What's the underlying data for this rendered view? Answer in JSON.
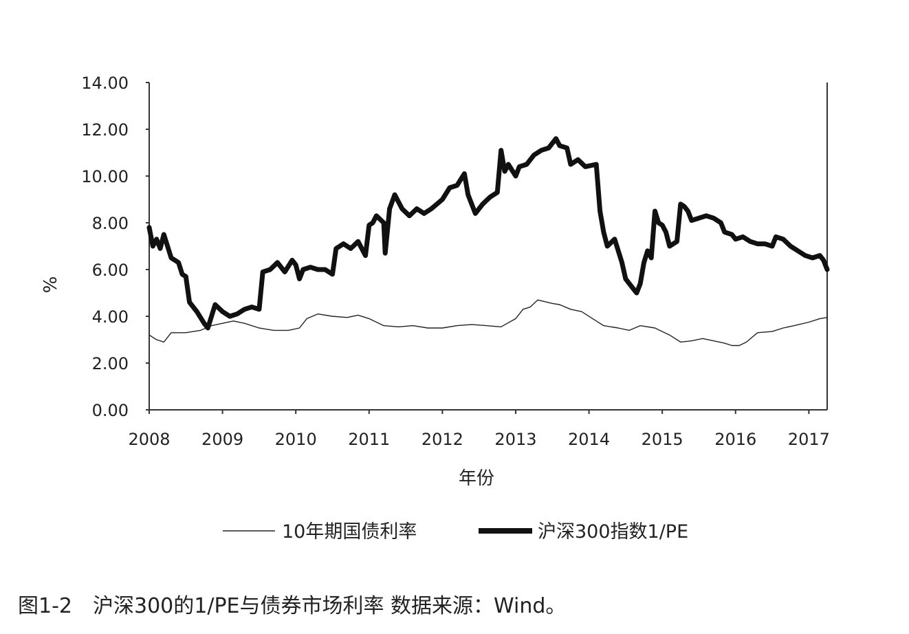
{
  "caption": "图1-2　沪深300的1/PE与债券市场利率 数据来源：Wind。",
  "chart_data": {
    "type": "line",
    "title": "",
    "xlabel": "年份",
    "ylabel": "%",
    "xlim": [
      2008.0,
      2017.25
    ],
    "ylim": [
      0,
      14
    ],
    "y_ticks": [
      "0.00",
      "2.00",
      "4.00",
      "6.00",
      "8.00",
      "10.00",
      "12.00",
      "14.00"
    ],
    "x_ticks": [
      "2008",
      "2009",
      "2010",
      "2011",
      "2012",
      "2013",
      "2014",
      "2015",
      "2016",
      "2017"
    ],
    "grid": false,
    "legend_position": "bottom",
    "series": [
      {
        "name": "10年期国债利率",
        "color": "#222222",
        "style": "thin",
        "points": [
          [
            2008.0,
            3.2
          ],
          [
            2008.1,
            3.0
          ],
          [
            2008.2,
            2.9
          ],
          [
            2008.3,
            3.3
          ],
          [
            2008.5,
            3.3
          ],
          [
            2008.7,
            3.4
          ],
          [
            2008.85,
            3.6
          ],
          [
            2009.0,
            3.7
          ],
          [
            2009.15,
            3.8
          ],
          [
            2009.3,
            3.7
          ],
          [
            2009.5,
            3.5
          ],
          [
            2009.7,
            3.4
          ],
          [
            2009.9,
            3.4
          ],
          [
            2010.05,
            3.5
          ],
          [
            2010.15,
            3.9
          ],
          [
            2010.3,
            4.1
          ],
          [
            2010.5,
            4.0
          ],
          [
            2010.7,
            3.95
          ],
          [
            2010.85,
            4.05
          ],
          [
            2011.0,
            3.9
          ],
          [
            2011.2,
            3.6
          ],
          [
            2011.4,
            3.55
          ],
          [
            2011.6,
            3.6
          ],
          [
            2011.8,
            3.5
          ],
          [
            2012.0,
            3.5
          ],
          [
            2012.2,
            3.6
          ],
          [
            2012.4,
            3.65
          ],
          [
            2012.6,
            3.6
          ],
          [
            2012.8,
            3.55
          ],
          [
            2013.0,
            3.9
          ],
          [
            2013.1,
            4.3
          ],
          [
            2013.2,
            4.4
          ],
          [
            2013.3,
            4.7
          ],
          [
            2013.5,
            4.55
          ],
          [
            2013.6,
            4.5
          ],
          [
            2013.75,
            4.3
          ],
          [
            2013.9,
            4.2
          ],
          [
            2014.1,
            3.8
          ],
          [
            2014.2,
            3.6
          ],
          [
            2014.4,
            3.5
          ],
          [
            2014.55,
            3.4
          ],
          [
            2014.7,
            3.6
          ],
          [
            2014.9,
            3.5
          ],
          [
            2015.1,
            3.2
          ],
          [
            2015.25,
            2.9
          ],
          [
            2015.4,
            2.95
          ],
          [
            2015.55,
            3.05
          ],
          [
            2015.7,
            2.95
          ],
          [
            2015.85,
            2.85
          ],
          [
            2015.95,
            2.75
          ],
          [
            2016.05,
            2.75
          ],
          [
            2016.15,
            2.9
          ],
          [
            2016.3,
            3.3
          ],
          [
            2016.5,
            3.35
          ],
          [
            2016.65,
            3.5
          ],
          [
            2016.8,
            3.6
          ],
          [
            2017.0,
            3.75
          ],
          [
            2017.15,
            3.9
          ],
          [
            2017.25,
            3.95
          ]
        ]
      },
      {
        "name": "沪深300指数1/PE",
        "color": "#111111",
        "style": "thick",
        "points": [
          [
            2008.0,
            7.8
          ],
          [
            2008.05,
            7.0
          ],
          [
            2008.1,
            7.3
          ],
          [
            2008.15,
            6.9
          ],
          [
            2008.2,
            7.5
          ],
          [
            2008.3,
            6.5
          ],
          [
            2008.4,
            6.3
          ],
          [
            2008.45,
            5.8
          ],
          [
            2008.5,
            5.7
          ],
          [
            2008.55,
            4.6
          ],
          [
            2008.65,
            4.2
          ],
          [
            2008.75,
            3.7
          ],
          [
            2008.8,
            3.5
          ],
          [
            2008.85,
            4.0
          ],
          [
            2008.9,
            4.5
          ],
          [
            2009.0,
            4.2
          ],
          [
            2009.1,
            4.0
          ],
          [
            2009.2,
            4.1
          ],
          [
            2009.3,
            4.3
          ],
          [
            2009.4,
            4.4
          ],
          [
            2009.5,
            4.3
          ],
          [
            2009.55,
            5.9
          ],
          [
            2009.65,
            6.0
          ],
          [
            2009.75,
            6.3
          ],
          [
            2009.85,
            5.9
          ],
          [
            2009.95,
            6.4
          ],
          [
            2010.0,
            6.2
          ],
          [
            2010.05,
            5.6
          ],
          [
            2010.1,
            6.0
          ],
          [
            2010.2,
            6.1
          ],
          [
            2010.3,
            6.0
          ],
          [
            2010.4,
            6.0
          ],
          [
            2010.5,
            5.8
          ],
          [
            2010.55,
            6.9
          ],
          [
            2010.65,
            7.1
          ],
          [
            2010.75,
            6.9
          ],
          [
            2010.85,
            7.2
          ],
          [
            2010.95,
            6.6
          ],
          [
            2011.0,
            7.9
          ],
          [
            2011.05,
            8.0
          ],
          [
            2011.1,
            8.3
          ],
          [
            2011.2,
            8.0
          ],
          [
            2011.22,
            6.7
          ],
          [
            2011.28,
            8.6
          ],
          [
            2011.35,
            9.2
          ],
          [
            2011.45,
            8.6
          ],
          [
            2011.55,
            8.3
          ],
          [
            2011.65,
            8.6
          ],
          [
            2011.75,
            8.4
          ],
          [
            2011.85,
            8.6
          ],
          [
            2012.0,
            9.0
          ],
          [
            2012.1,
            9.5
          ],
          [
            2012.2,
            9.6
          ],
          [
            2012.3,
            10.1
          ],
          [
            2012.35,
            9.2
          ],
          [
            2012.45,
            8.4
          ],
          [
            2012.55,
            8.8
          ],
          [
            2012.65,
            9.1
          ],
          [
            2012.75,
            9.3
          ],
          [
            2012.8,
            11.1
          ],
          [
            2012.85,
            10.2
          ],
          [
            2012.9,
            10.5
          ],
          [
            2013.0,
            10.0
          ],
          [
            2013.05,
            10.4
          ],
          [
            2013.15,
            10.5
          ],
          [
            2013.25,
            10.9
          ],
          [
            2013.35,
            11.1
          ],
          [
            2013.45,
            11.2
          ],
          [
            2013.55,
            11.6
          ],
          [
            2013.6,
            11.3
          ],
          [
            2013.7,
            11.2
          ],
          [
            2013.75,
            10.5
          ],
          [
            2013.85,
            10.7
          ],
          [
            2013.95,
            10.4
          ],
          [
            2014.1,
            10.5
          ],
          [
            2014.15,
            8.5
          ],
          [
            2014.2,
            7.6
          ],
          [
            2014.25,
            7.0
          ],
          [
            2014.35,
            7.3
          ],
          [
            2014.45,
            6.3
          ],
          [
            2014.5,
            5.6
          ],
          [
            2014.6,
            5.2
          ],
          [
            2014.65,
            5.0
          ],
          [
            2014.7,
            5.4
          ],
          [
            2014.75,
            6.3
          ],
          [
            2014.8,
            6.8
          ],
          [
            2014.85,
            6.5
          ],
          [
            2014.9,
            8.5
          ],
          [
            2014.95,
            8.0
          ],
          [
            2015.0,
            7.9
          ],
          [
            2015.05,
            7.6
          ],
          [
            2015.1,
            7.0
          ],
          [
            2015.2,
            7.2
          ],
          [
            2015.25,
            8.8
          ],
          [
            2015.3,
            8.7
          ],
          [
            2015.35,
            8.5
          ],
          [
            2015.4,
            8.1
          ],
          [
            2015.5,
            8.2
          ],
          [
            2015.6,
            8.3
          ],
          [
            2015.7,
            8.2
          ],
          [
            2015.8,
            8.0
          ],
          [
            2015.85,
            7.6
          ],
          [
            2015.95,
            7.5
          ],
          [
            2016.0,
            7.3
          ],
          [
            2016.1,
            7.4
          ],
          [
            2016.2,
            7.2
          ],
          [
            2016.3,
            7.1
          ],
          [
            2016.4,
            7.1
          ],
          [
            2016.5,
            7.0
          ],
          [
            2016.55,
            7.4
          ],
          [
            2016.65,
            7.3
          ],
          [
            2016.75,
            7.0
          ],
          [
            2016.85,
            6.8
          ],
          [
            2016.95,
            6.6
          ],
          [
            2017.05,
            6.5
          ],
          [
            2017.15,
            6.6
          ],
          [
            2017.2,
            6.4
          ],
          [
            2017.25,
            6.0
          ]
        ]
      }
    ]
  }
}
